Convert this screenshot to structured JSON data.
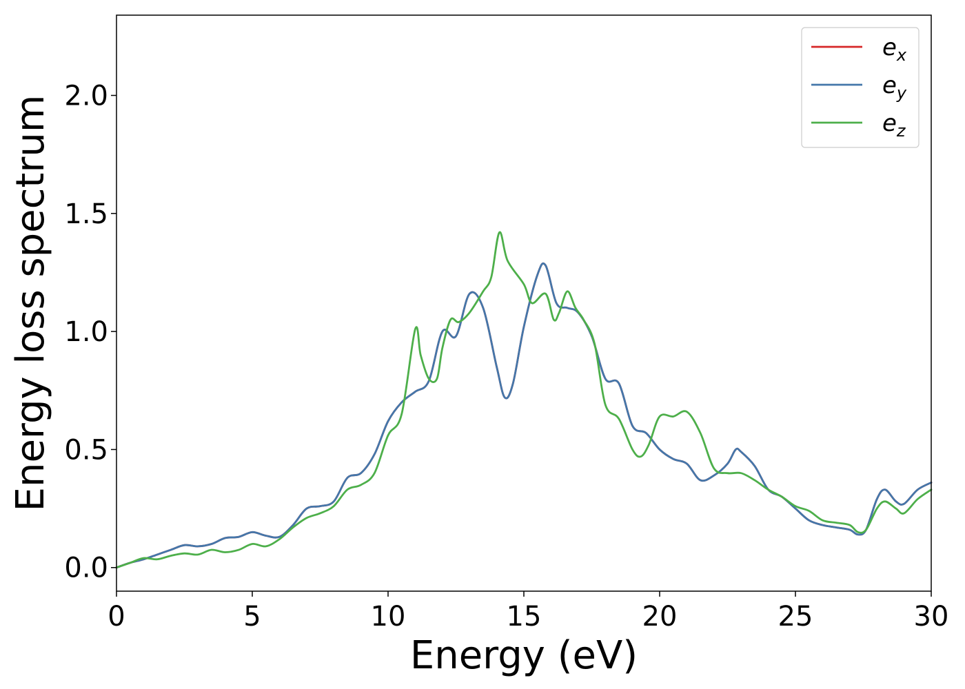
{
  "chart_data": {
    "type": "line",
    "xlabel": "Energy (eV)",
    "ylabel": "Energy loss spectrum",
    "xlim": [
      0,
      30
    ],
    "ylim": [
      -0.1,
      2.34
    ],
    "xticks": [
      0,
      5,
      10,
      15,
      20,
      25,
      30
    ],
    "xtick_labels": [
      "0",
      "5",
      "10",
      "15",
      "20",
      "25",
      "30"
    ],
    "yticks": [
      0.0,
      0.5,
      1.0,
      1.5,
      2.0
    ],
    "ytick_labels": [
      "0.0",
      "0.5",
      "1.0",
      "1.5",
      "2.0"
    ],
    "grid": false,
    "legend_position": "top-right",
    "colors": {
      "e_x": "#d62728",
      "e_y": "#4477aa",
      "e_z": "#4daf4a"
    },
    "series": [
      {
        "name": "e_x",
        "legend_base": "e",
        "legend_sub": "x",
        "color": "#d62728",
        "x": [
          0,
          0.5,
          1,
          1.5,
          2,
          2.5,
          3,
          3.5,
          4,
          4.5,
          5,
          5.5,
          6,
          6.5,
          7,
          7.5,
          8,
          8.5,
          9,
          9.5,
          10,
          10.5,
          11,
          11.5,
          12,
          12.5,
          13,
          13.5,
          14,
          14.3,
          14.6,
          15,
          15.5,
          15.8,
          16.2,
          16.6,
          17,
          17.5,
          18,
          18.5,
          19,
          19.5,
          20,
          20.5,
          21,
          21.5,
          22,
          22.5,
          22.8,
          23,
          23.5,
          24,
          24.5,
          25,
          25.5,
          26,
          26.5,
          27,
          27.3,
          27.6,
          28,
          28.3,
          28.7,
          29,
          29.5,
          30
        ],
        "values": [
          0,
          0.02,
          0.035,
          0.055,
          0.075,
          0.095,
          0.09,
          0.1,
          0.125,
          0.13,
          0.15,
          0.135,
          0.13,
          0.18,
          0.25,
          0.26,
          0.28,
          0.38,
          0.4,
          0.48,
          0.62,
          0.7,
          0.745,
          0.79,
          1.0,
          0.98,
          1.16,
          1.1,
          0.85,
          0.72,
          0.78,
          1.02,
          1.24,
          1.28,
          1.12,
          1.1,
          1.08,
          0.98,
          0.8,
          0.78,
          0.6,
          0.57,
          0.5,
          0.46,
          0.44,
          0.37,
          0.39,
          0.44,
          0.5,
          0.49,
          0.43,
          0.33,
          0.3,
          0.25,
          0.2,
          0.18,
          0.17,
          0.16,
          0.14,
          0.16,
          0.29,
          0.33,
          0.28,
          0.27,
          0.33,
          0.36
        ]
      },
      {
        "name": "e_y",
        "legend_base": "e",
        "legend_sub": "y",
        "color": "#4477aa",
        "x": [
          0,
          0.5,
          1,
          1.5,
          2,
          2.5,
          3,
          3.5,
          4,
          4.5,
          5,
          5.5,
          6,
          6.5,
          7,
          7.5,
          8,
          8.5,
          9,
          9.5,
          10,
          10.5,
          11,
          11.5,
          12,
          12.5,
          13,
          13.5,
          14,
          14.3,
          14.6,
          15,
          15.5,
          15.8,
          16.2,
          16.6,
          17,
          17.5,
          18,
          18.5,
          19,
          19.5,
          20,
          20.5,
          21,
          21.5,
          22,
          22.5,
          22.8,
          23,
          23.5,
          24,
          24.5,
          25,
          25.5,
          26,
          26.5,
          27,
          27.3,
          27.6,
          28,
          28.3,
          28.7,
          29,
          29.5,
          30
        ],
        "values": [
          0,
          0.02,
          0.035,
          0.055,
          0.075,
          0.095,
          0.09,
          0.1,
          0.125,
          0.13,
          0.15,
          0.135,
          0.13,
          0.18,
          0.25,
          0.26,
          0.28,
          0.38,
          0.4,
          0.48,
          0.62,
          0.7,
          0.745,
          0.79,
          1.0,
          0.98,
          1.16,
          1.1,
          0.85,
          0.72,
          0.78,
          1.02,
          1.24,
          1.28,
          1.12,
          1.1,
          1.08,
          0.98,
          0.8,
          0.78,
          0.6,
          0.57,
          0.5,
          0.46,
          0.44,
          0.37,
          0.39,
          0.44,
          0.5,
          0.49,
          0.43,
          0.33,
          0.3,
          0.25,
          0.2,
          0.18,
          0.17,
          0.16,
          0.14,
          0.16,
          0.29,
          0.33,
          0.28,
          0.27,
          0.33,
          0.36
        ]
      },
      {
        "name": "e_z",
        "legend_base": "e",
        "legend_sub": "z",
        "color": "#4daf4a",
        "x": [
          0,
          0.5,
          1,
          1.5,
          2,
          2.5,
          3,
          3.5,
          4,
          4.5,
          5,
          5.5,
          6,
          6.5,
          7,
          7.5,
          8,
          8.5,
          9,
          9.5,
          10,
          10.5,
          11,
          11.2,
          11.5,
          11.8,
          12,
          12.3,
          12.6,
          13,
          13.5,
          13.8,
          14.1,
          14.4,
          15,
          15.3,
          15.8,
          16.1,
          16.3,
          16.6,
          16.9,
          17.2,
          17.6,
          18,
          18.5,
          19,
          19.3,
          19.6,
          20,
          20.5,
          21,
          21.5,
          22,
          22.5,
          23,
          23.5,
          24,
          24.5,
          25,
          25.5,
          26,
          26.5,
          27,
          27.3,
          27.6,
          28,
          28.3,
          28.7,
          29,
          29.5,
          30
        ],
        "values": [
          0,
          0.02,
          0.04,
          0.035,
          0.05,
          0.06,
          0.055,
          0.075,
          0.065,
          0.075,
          0.1,
          0.09,
          0.12,
          0.17,
          0.21,
          0.23,
          0.26,
          0.33,
          0.35,
          0.4,
          0.56,
          0.65,
          1.01,
          0.9,
          0.8,
          0.8,
          0.93,
          1.05,
          1.04,
          1.08,
          1.17,
          1.23,
          1.42,
          1.3,
          1.2,
          1.12,
          1.16,
          1.05,
          1.08,
          1.17,
          1.1,
          1.05,
          0.95,
          0.69,
          0.63,
          0.5,
          0.47,
          0.52,
          0.64,
          0.64,
          0.66,
          0.57,
          0.42,
          0.4,
          0.4,
          0.37,
          0.33,
          0.3,
          0.26,
          0.24,
          0.2,
          0.19,
          0.18,
          0.15,
          0.16,
          0.25,
          0.28,
          0.25,
          0.23,
          0.29,
          0.33
        ]
      }
    ]
  }
}
